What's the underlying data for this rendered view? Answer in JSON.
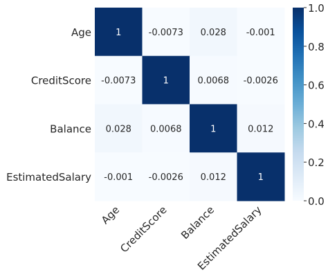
{
  "chart_data": {
    "type": "heatmap",
    "title": "",
    "xlabel": "",
    "ylabel": "",
    "row_labels": [
      "Age",
      "CreditScore",
      "Balance",
      "EstimatedSalary"
    ],
    "col_labels": [
      "Age",
      "CreditScore",
      "Balance",
      "EstimatedSalary"
    ],
    "values": [
      [
        1,
        -0.0073,
        0.028,
        -0.001
      ],
      [
        -0.0073,
        1,
        0.0068,
        -0.0026
      ],
      [
        0.028,
        0.0068,
        1,
        0.012
      ],
      [
        -0.001,
        -0.0026,
        0.012,
        1
      ]
    ],
    "annotations": [
      [
        "1",
        "-0.0073",
        "0.028",
        "-0.001"
      ],
      [
        "-0.0073",
        "1",
        "0.0068",
        "-0.0026"
      ],
      [
        "0.028",
        "0.0068",
        "1",
        "0.012"
      ],
      [
        "-0.001",
        "-0.0026",
        "0.012",
        "1"
      ]
    ],
    "colormap": "Blues",
    "colorbar": {
      "range": [
        0.0,
        1.0
      ],
      "ticks": [
        "0.0",
        "0.2",
        "0.4",
        "0.6",
        "0.8",
        "1.0"
      ]
    },
    "colors": {
      "low": "#f7fbff",
      "high": "#08306b",
      "annot_dark_bg": "#ffffff",
      "annot_light_bg": "#262626"
    }
  }
}
